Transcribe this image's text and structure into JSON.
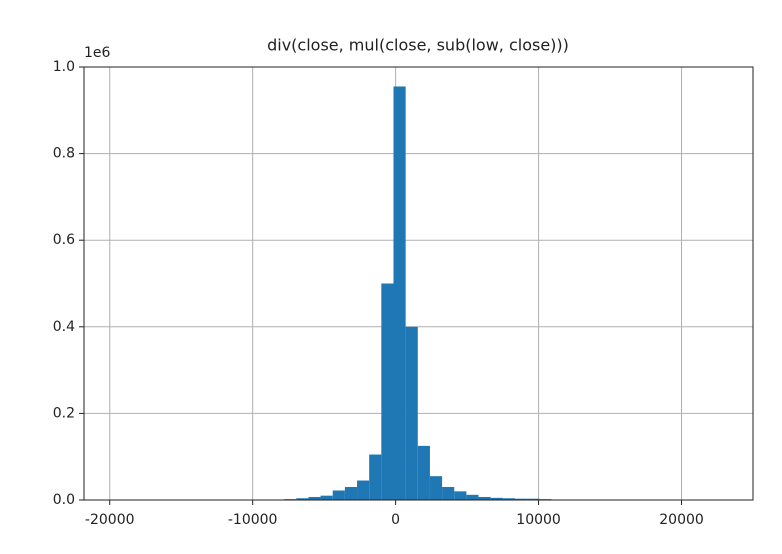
{
  "chart_data": {
    "type": "histogram",
    "title": "div(close, mul(close, sub(low, close)))",
    "bins": [
      -19700,
      -18850,
      -18000,
      -17150,
      -16300,
      -15450,
      -14600,
      -13750,
      -12900,
      -12050,
      -11200,
      -10350,
      -9500,
      -8650,
      -7800,
      -6950,
      -6100,
      -5250,
      -4400,
      -3550,
      -2700,
      -1850,
      -1000,
      -150,
      700,
      1550,
      2400,
      3250,
      4100,
      4950,
      5800,
      6650,
      7500,
      8350,
      9200,
      10050,
      10900,
      11750,
      12600,
      13450,
      14300,
      15150,
      16000,
      16850,
      17700,
      18550,
      19400,
      20250,
      21100,
      21950,
      22800
    ],
    "values": [
      0,
      0,
      0,
      0,
      0,
      0,
      0,
      0,
      0,
      0,
      0,
      0,
      0,
      0,
      2000,
      4000,
      7000,
      10000,
      22000,
      30000,
      45000,
      105000,
      500000,
      955000,
      400000,
      125000,
      55000,
      30000,
      20000,
      12000,
      7000,
      5000,
      4000,
      3000,
      3000,
      2000,
      0,
      0,
      0,
      0,
      0,
      0,
      0,
      0,
      0,
      0,
      0,
      0,
      0,
      0
    ],
    "color": "#1f77b4",
    "xlim": [
      -21800,
      25000
    ],
    "xticks": [
      -20000,
      -10000,
      0,
      10000,
      20000
    ],
    "ylim": [
      0,
      1000000
    ],
    "yticks": [
      {
        "value": 0,
        "label": "0.0"
      },
      {
        "value": 200000,
        "label": "0.2"
      },
      {
        "value": 400000,
        "label": "0.4"
      },
      {
        "value": 600000,
        "label": "0.6"
      },
      {
        "value": 800000,
        "label": "0.8"
      },
      {
        "value": 1000000,
        "label": "1.0"
      }
    ],
    "y_offset_label": "1e6",
    "grid": true
  }
}
